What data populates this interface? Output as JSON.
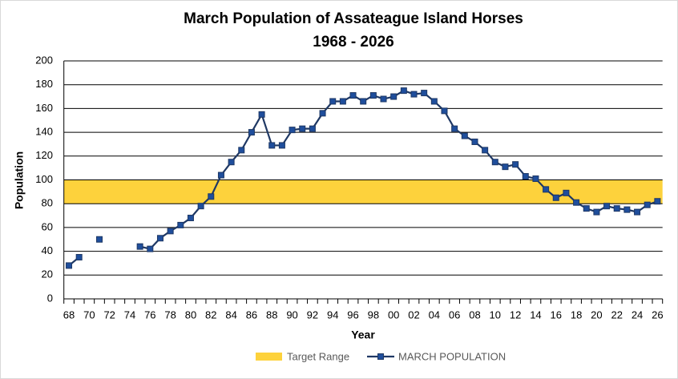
{
  "chart_data": {
    "type": "line",
    "title": "March Population of Assateague Island Horses",
    "subtitle": "1968 - 2026",
    "x_label": "Year",
    "y_label": "Population",
    "categories": [
      "68",
      null,
      "70",
      null,
      "72",
      null,
      "74",
      null,
      "76",
      null,
      "78",
      null,
      "80",
      null,
      "82",
      null,
      "84",
      null,
      "86",
      null,
      "88",
      null,
      "90",
      null,
      "92",
      null,
      "94",
      null,
      "96",
      null,
      "98",
      null,
      "00",
      null,
      "02",
      null,
      "04",
      null,
      "06",
      null,
      "08",
      null,
      "10",
      null,
      "12",
      null,
      "14",
      null,
      "16",
      null,
      "18",
      null,
      "20",
      null,
      "22",
      null,
      "24",
      null,
      "26"
    ],
    "target_range": {
      "name": "Target Range",
      "color": "#fdd23c",
      "low": 80,
      "high": 100
    },
    "series": [
      {
        "name": "MARCH POPULATION",
        "color": "#1f3864",
        "marker_color": "#1f4e9c",
        "values": [
          28,
          35,
          null,
          50,
          null,
          null,
          null,
          44,
          42,
          51,
          57,
          62,
          68,
          78,
          86,
          104,
          115,
          125,
          140,
          155,
          129,
          129,
          142,
          143,
          143,
          156,
          166,
          166,
          171,
          166,
          171,
          168,
          170,
          175,
          172,
          173,
          166,
          158,
          143,
          137,
          132,
          125,
          115,
          111,
          113,
          103,
          101,
          92,
          85,
          89,
          81,
          76,
          73,
          78,
          76,
          75,
          73,
          79,
          82
        ]
      }
    ],
    "ylim": [
      0,
      200
    ],
    "yticks": [
      0,
      20,
      40,
      60,
      80,
      100,
      120,
      140,
      160,
      180,
      200
    ],
    "grid": true
  }
}
